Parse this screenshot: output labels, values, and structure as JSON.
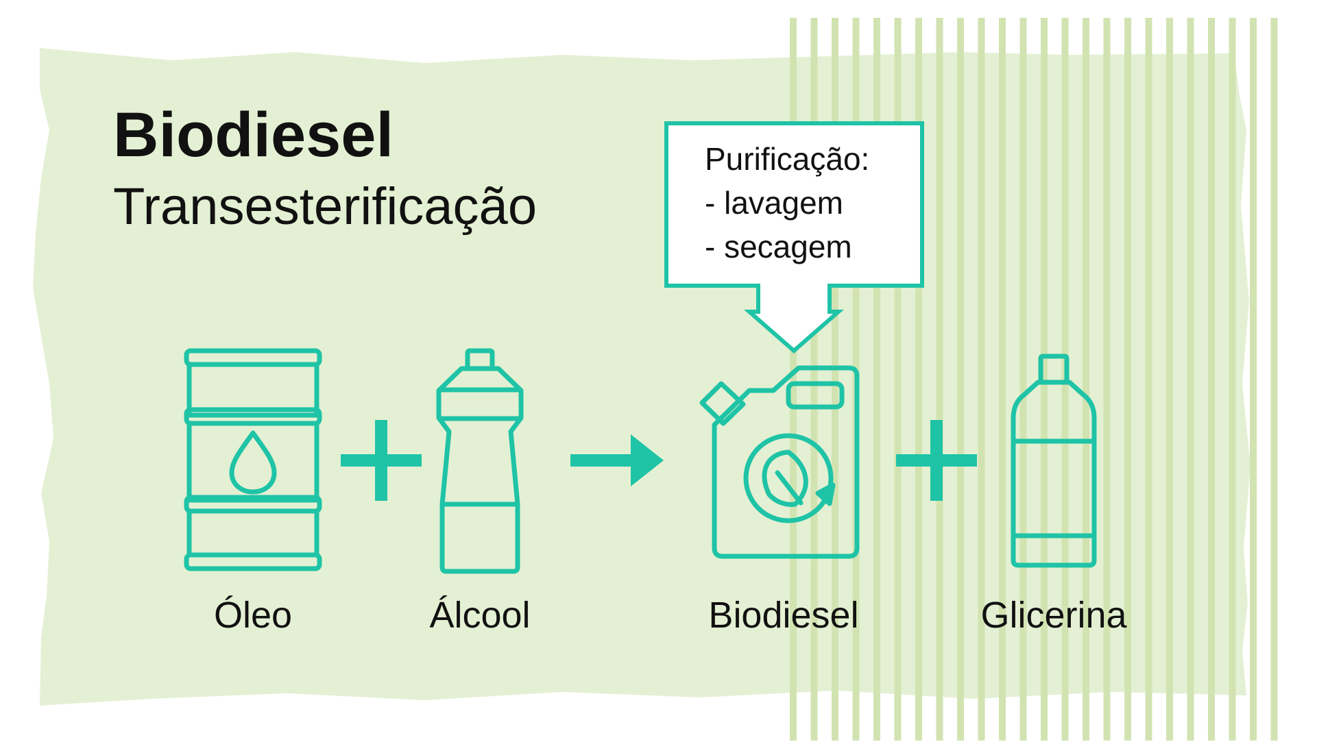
{
  "title": "Biodiesel",
  "subtitle": "Transesterificação",
  "callout": {
    "heading": "Purificação:",
    "items": [
      "- lavagem",
      "- secagem"
    ]
  },
  "items": [
    {
      "label": "Óleo",
      "icon": "oil-barrel-icon"
    },
    {
      "label": "Álcool",
      "icon": "alcohol-bottle-icon"
    },
    {
      "label": "Biodiesel",
      "icon": "biodiesel-jerrycan-icon"
    },
    {
      "label": "Glicerina",
      "icon": "glycerin-bottle-icon"
    }
  ],
  "operators": [
    "plus-icon",
    "arrow-right-icon",
    "plus-icon"
  ],
  "colors": {
    "background_shape": "#e4f0d3",
    "stripes": "#d2e3b2",
    "accent": "#1fc3a6",
    "text": "#111111"
  }
}
